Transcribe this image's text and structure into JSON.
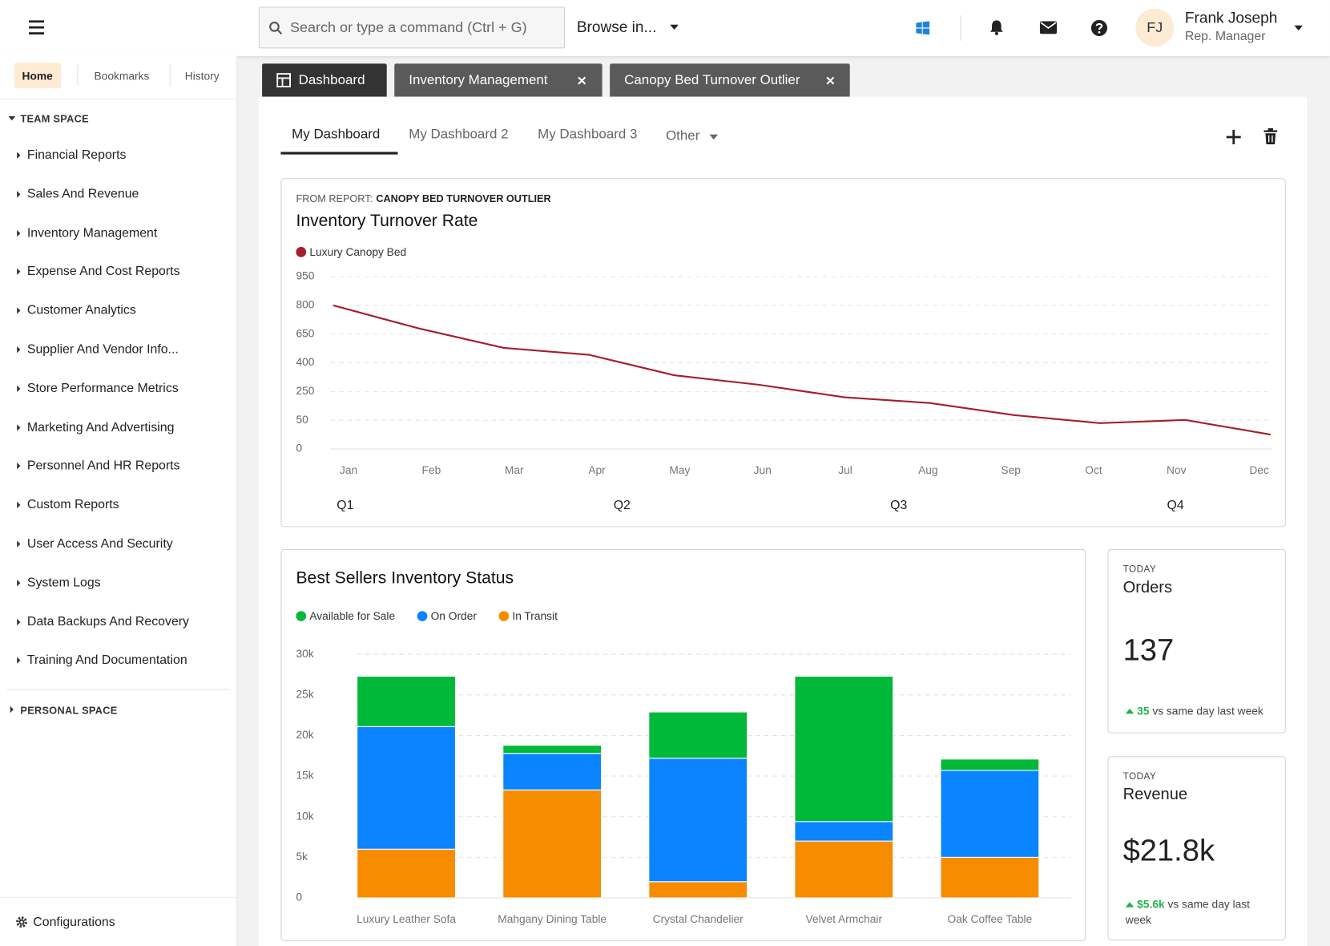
{
  "header": {
    "search_placeholder": "Search or type a command (Ctrl + G)",
    "browse": "Browse in...",
    "user_initials": "FJ",
    "user_name": "Frank Joseph",
    "user_role": "Rep. Manager"
  },
  "sidebar": {
    "tabs": [
      "Home",
      "Bookmarks",
      "History"
    ],
    "team_space": "TEAM SPACE",
    "items": [
      "Financial Reports",
      "Sales And Revenue",
      "Inventory Management",
      "Expense And Cost Reports",
      "Customer Analytics",
      "Supplier And Vendor Info...",
      "Store Performance Metrics",
      "Marketing And Advertising",
      "Personnel And HR Reports",
      "Custom Reports",
      "User Access And Security",
      "System Logs",
      "Data Backups And Recovery",
      "Training And Documentation"
    ],
    "personal_space": "PERSONAL SPACE",
    "configurations": "Configurations"
  },
  "tabs": [
    "Dashboard",
    "Inventory Management",
    "Canopy Bed Turnover Outlier"
  ],
  "dashboard_tabs": [
    "My Dashboard",
    "My Dashboard 2",
    "My Dashboard 3",
    "Other"
  ],
  "chart_data": [
    {
      "type": "line",
      "source_label": "FROM REPORT:",
      "source": "CANOPY BED TURNOVER OUTLIER",
      "title": "Inventory Turnover Rate",
      "categories": [
        "Jan",
        "Feb",
        "Mar",
        "Apr",
        "May",
        "Jun",
        "Jul",
        "Aug",
        "Sep",
        "Oct",
        "Nov",
        "Dec"
      ],
      "groups": [
        "Q1",
        "Q2",
        "Q3",
        "Q4"
      ],
      "series": [
        {
          "name": "Luxury Canopy Bed",
          "color": "#a31f2b",
          "values": [
            800,
            680,
            530,
            470,
            335,
            285,
            210,
            170,
            85,
            45,
            52,
            25
          ]
        }
      ],
      "ylim": [
        0,
        950
      ],
      "yticks": [
        0,
        50,
        250,
        400,
        650,
        800,
        950
      ],
      "grid": true
    },
    {
      "type": "stacked-bar",
      "title": "Best Sellers Inventory Status",
      "categories": [
        "Luxury Leather Sofa",
        "Mahgany Dining Table",
        "Crystal Chandelier",
        "Velvet Armchair",
        "Oak Coffee Table"
      ],
      "series": [
        {
          "name": "Available for Sale",
          "color": "#00b938",
          "values": [
            6200,
            1000,
            5700,
            17900,
            1400
          ]
        },
        {
          "name": "On Order",
          "color": "#0a84ff",
          "values": [
            15100,
            4500,
            15200,
            2400,
            10700
          ]
        },
        {
          "name": "In Transit",
          "color": "#f78c00",
          "values": [
            6000,
            13300,
            2000,
            7000,
            5000
          ]
        }
      ],
      "stack_order": [
        "In Transit",
        "On Order",
        "Available for Sale"
      ],
      "ylim": [
        0,
        30000
      ],
      "yticks": [
        0,
        {
          "value": 5000,
          "label": "5k"
        },
        {
          "value": 10000,
          "label": "10k"
        },
        {
          "value": 15000,
          "label": "15k"
        },
        {
          "value": 20000,
          "label": "20k"
        },
        {
          "value": 25000,
          "label": "25k"
        },
        {
          "value": 30000,
          "label": "30k"
        }
      ],
      "grid": true
    }
  ],
  "kpis": [
    {
      "period": "TODAY",
      "title": "Orders",
      "value": "137",
      "delta": "35",
      "delta_text": "vs same day last week"
    },
    {
      "period": "TODAY",
      "title": "Revenue",
      "value": "$21.8k",
      "delta": "$5.6k",
      "delta_text": "vs same day last week"
    }
  ]
}
